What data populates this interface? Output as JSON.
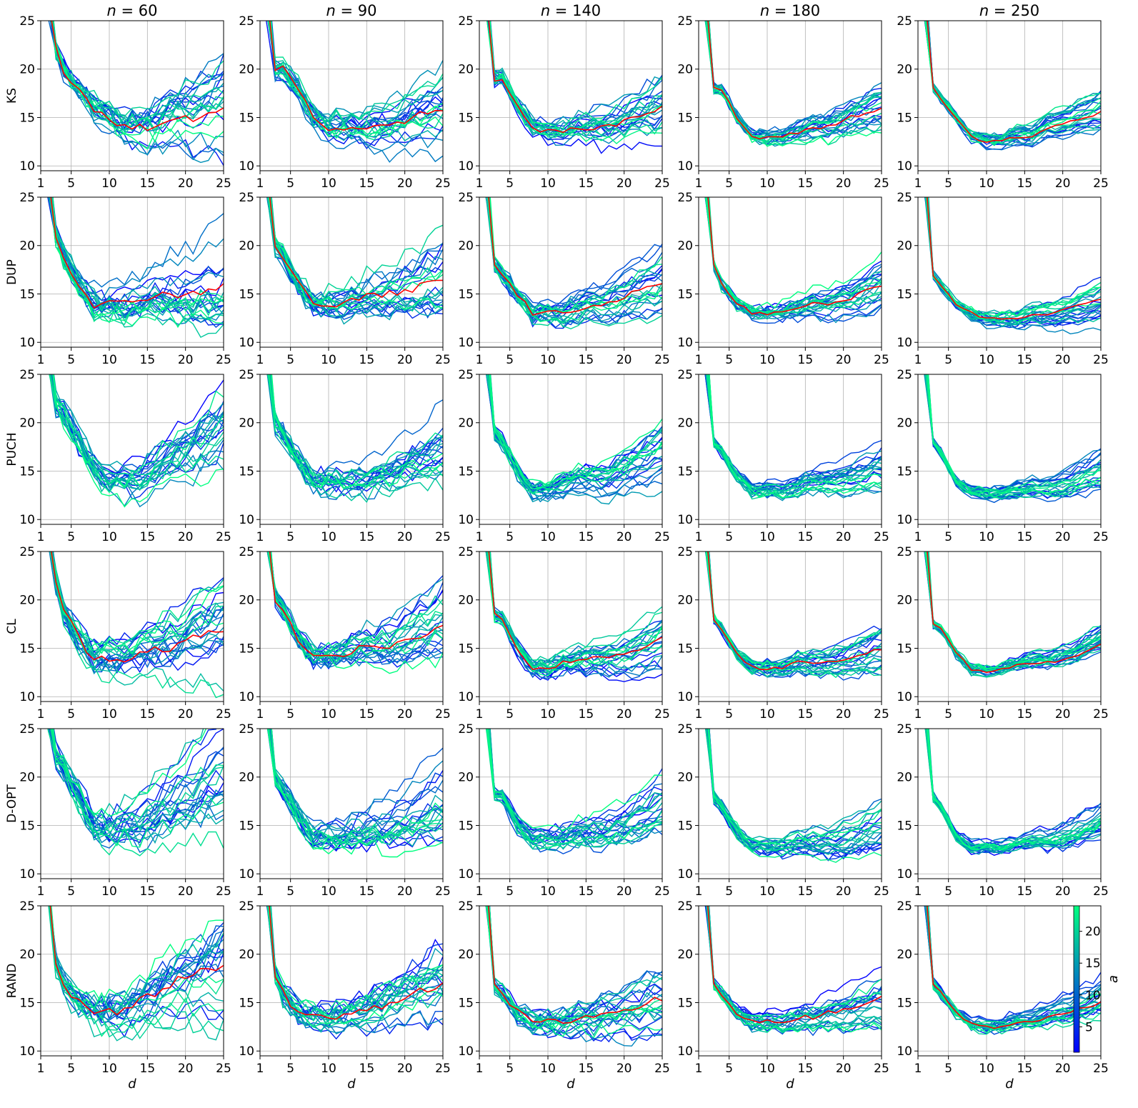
{
  "figure": {
    "col_titles": [
      {
        "var": "n",
        "eq": " = ",
        "val": "60"
      },
      {
        "var": "n",
        "eq": " = ",
        "val": "90"
      },
      {
        "var": "n",
        "eq": " = ",
        "val": "140"
      },
      {
        "var": "n",
        "eq": " = ",
        "val": "180"
      },
      {
        "var": "n",
        "eq": " = ",
        "val": "250"
      }
    ],
    "row_labels": [
      "KS",
      "DUP",
      "PUCH",
      "CL",
      "D-OPT",
      "RAND"
    ],
    "xlabel": "d",
    "colorbar": {
      "label": "a",
      "ticks": [
        "5",
        "10",
        "15",
        "20"
      ],
      "range": [
        1,
        24
      ],
      "color_low": "#0000ff",
      "color_high": "#00ff80"
    },
    "highlight_color": "#ff0000"
  },
  "chart_data": {
    "type": "line",
    "layout": "grid 6 rows x 5 columns",
    "rows": [
      "KS",
      "DUP",
      "PUCH",
      "CL",
      "D-OPT",
      "RAND"
    ],
    "columns": [
      "n = 60",
      "n = 90",
      "n = 140",
      "n = 180",
      "n = 250"
    ],
    "xlabel": "d",
    "ylabel": "",
    "xlim": [
      1,
      25
    ],
    "ylim": [
      9.5,
      25
    ],
    "xticks": [
      "1",
      "5",
      "10",
      "15",
      "20",
      "25"
    ],
    "yticks": [
      "10",
      "15",
      "20",
      "25"
    ],
    "grid": true,
    "series_per_panel": 24,
    "series_color_variable": "a",
    "color_scale": {
      "var": "a",
      "min": 1,
      "max": 24,
      "ticks": [
        5,
        10,
        15,
        20
      ]
    },
    "x": [
      1,
      2,
      3,
      4,
      5,
      6,
      7,
      8,
      9,
      10,
      11,
      12,
      13,
      14,
      15,
      16,
      17,
      18,
      19,
      20,
      21,
      22,
      23,
      24,
      25
    ],
    "panel_shape": {
      "KS": [
        [
          30,
          22,
          20,
          18,
          16,
          15,
          14,
          14,
          14,
          15,
          15,
          16
        ],
        [
          30,
          20,
          20,
          18,
          15,
          14,
          14,
          14,
          14,
          14,
          15,
          16
        ],
        [
          30,
          19,
          19,
          16,
          14,
          13.5,
          13.5,
          14,
          14,
          14,
          15,
          16
        ],
        [
          30,
          18,
          18,
          15,
          13,
          13,
          13,
          13.5,
          14,
          14,
          15,
          16
        ],
        [
          30,
          18,
          17,
          15,
          13,
          12.5,
          12.5,
          13,
          13,
          14,
          14.5,
          15.5
        ]
      ],
      "DUP": [
        [
          30,
          21,
          19,
          16,
          14,
          14,
          14,
          14.5,
          15,
          15,
          15,
          16
        ],
        [
          30,
          20,
          19,
          16,
          14,
          14,
          14,
          14.5,
          15,
          15,
          15.5,
          16.5
        ],
        [
          30,
          18,
          17,
          15,
          13,
          13,
          13,
          13.5,
          14,
          14,
          15,
          16
        ],
        [
          30,
          18,
          16,
          14,
          13,
          13,
          13,
          13.5,
          14,
          14,
          14.5,
          16
        ],
        [
          30,
          17,
          16,
          14,
          13,
          12.5,
          12.5,
          12.5,
          13,
          13,
          13.5,
          14.5
        ]
      ],
      "PUCH": [
        [
          30,
          22,
          21,
          18,
          15,
          14,
          14,
          14,
          15,
          16,
          17,
          19
        ],
        [
          30,
          20,
          19,
          16,
          14,
          14,
          14,
          14,
          14.5,
          15,
          16,
          17.5
        ],
        [
          30,
          19,
          18,
          15,
          13,
          13,
          13.5,
          14,
          14,
          14,
          15,
          16.5
        ],
        [
          30,
          18,
          17,
          14.5,
          13,
          13,
          13,
          13.5,
          14,
          14,
          14.5,
          15.5
        ],
        [
          30,
          18,
          17,
          14,
          13,
          12.8,
          12.8,
          13.2,
          13.5,
          13.5,
          14,
          15.5
        ]
      ],
      "CL": [
        [
          30,
          22,
          19,
          16,
          14,
          14,
          14,
          14.5,
          15,
          15,
          16,
          17
        ],
        [
          30,
          20,
          19,
          16,
          14,
          14,
          14.5,
          15,
          15,
          15,
          16,
          17.5
        ],
        [
          30,
          18.5,
          18,
          15,
          13,
          13,
          13.5,
          14,
          14,
          14,
          14.5,
          16
        ],
        [
          30,
          18,
          17,
          14.5,
          13,
          13,
          13,
          13.5,
          13.5,
          13.5,
          14,
          15
        ],
        [
          30,
          17.5,
          17,
          14.5,
          12.8,
          12.5,
          12.8,
          13.2,
          13.5,
          13.5,
          14,
          15.5
        ]
      ],
      "D-OPT": [
        [
          30,
          22,
          21,
          18,
          15,
          14.5,
          15,
          15,
          16,
          17,
          18.5,
          20.5
        ],
        [
          30,
          20,
          19,
          16,
          14,
          14,
          14,
          14.5,
          15,
          15,
          16,
          17.5
        ],
        [
          30,
          18.5,
          18,
          15,
          13.5,
          13.5,
          13.5,
          14,
          14,
          14,
          15,
          16.5
        ],
        [
          30,
          18,
          17,
          14.5,
          13,
          13,
          13,
          13.5,
          13.5,
          13.5,
          14,
          15.5
        ],
        [
          30,
          18,
          17,
          14,
          12.8,
          12.8,
          12.8,
          13.2,
          13.5,
          13.5,
          14,
          15.5
        ]
      ],
      "RAND": [
        [
          30,
          19,
          17,
          15,
          14,
          14,
          14,
          15,
          16,
          17,
          18,
          19
        ],
        [
          30,
          18,
          16,
          14,
          13.5,
          13.5,
          13.5,
          14,
          14.5,
          15,
          16,
          17
        ],
        [
          30,
          17,
          16,
          14,
          13,
          13,
          13,
          13.5,
          13.5,
          14,
          14.5,
          15.5
        ],
        [
          30,
          17,
          16,
          14,
          13,
          13,
          13,
          13.5,
          13.5,
          14,
          14.5,
          15.5
        ],
        [
          30,
          17,
          16,
          14,
          12.8,
          12.5,
          12.5,
          13,
          13,
          13.5,
          14,
          15
        ]
      ]
    },
    "panel_shape_x": [
      1,
      3,
      4,
      6,
      8,
      10,
      12,
      14,
      16,
      18,
      21,
      25
    ],
    "panel_spread": [
      [
        2.2,
        1.8,
        1.4,
        1.0,
        0.8
      ],
      [
        2.2,
        1.8,
        1.4,
        1.1,
        0.9
      ],
      [
        2.2,
        1.8,
        1.3,
        1.0,
        0.8
      ],
      [
        2.2,
        1.8,
        1.3,
        1.0,
        0.8
      ],
      [
        2.4,
        1.9,
        1.4,
        1.1,
        0.9
      ],
      [
        2.6,
        2.1,
        1.6,
        1.2,
        0.9
      ]
    ],
    "panel_has_red": [
      [
        true,
        true,
        true,
        true,
        true
      ],
      [
        true,
        true,
        true,
        true,
        true
      ],
      [
        false,
        false,
        false,
        false,
        false
      ],
      [
        true,
        true,
        true,
        true,
        true
      ],
      [
        false,
        false,
        false,
        false,
        false
      ],
      [
        true,
        true,
        true,
        true,
        true
      ]
    ]
  }
}
